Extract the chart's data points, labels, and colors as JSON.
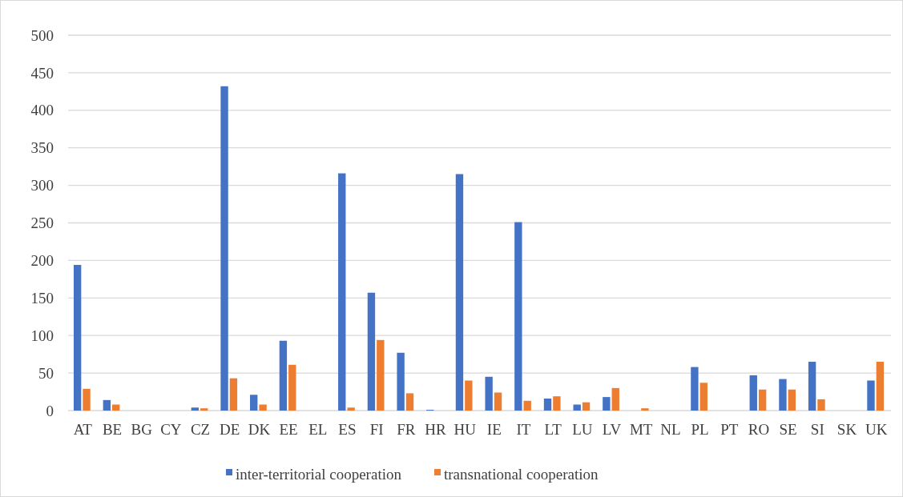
{
  "chart_data": {
    "type": "bar",
    "categories": [
      "AT",
      "BE",
      "BG",
      "CY",
      "CZ",
      "DE",
      "DK",
      "EE",
      "EL",
      "ES",
      "FI",
      "FR",
      "HR",
      "HU",
      "IE",
      "IT",
      "LT",
      "LU",
      "LV",
      "MT",
      "NL",
      "PL",
      "PT",
      "RO",
      "SE",
      "SI",
      "SK",
      "UK"
    ],
    "series": [
      {
        "name": "inter-territorial cooperation",
        "color": "#4472c4",
        "values": [
          194,
          14,
          0,
          0,
          4,
          432,
          21,
          93,
          0,
          316,
          157,
          77,
          1,
          315,
          45,
          251,
          16,
          8,
          18,
          0,
          0,
          58,
          0,
          47,
          42,
          65,
          0,
          40
        ]
      },
      {
        "name": "transnational cooperation",
        "color": "#ed7d31",
        "values": [
          29,
          8,
          0,
          0,
          3,
          43,
          8,
          61,
          0,
          4,
          94,
          23,
          0,
          40,
          24,
          13,
          19,
          11,
          30,
          3,
          0,
          37,
          0,
          28,
          28,
          15,
          0,
          65
        ]
      }
    ],
    "ylim": [
      0,
      500
    ],
    "yticks": [
      0,
      50,
      100,
      150,
      200,
      250,
      300,
      350,
      400,
      450,
      500
    ],
    "grid": "y",
    "legend": "bottom"
  }
}
